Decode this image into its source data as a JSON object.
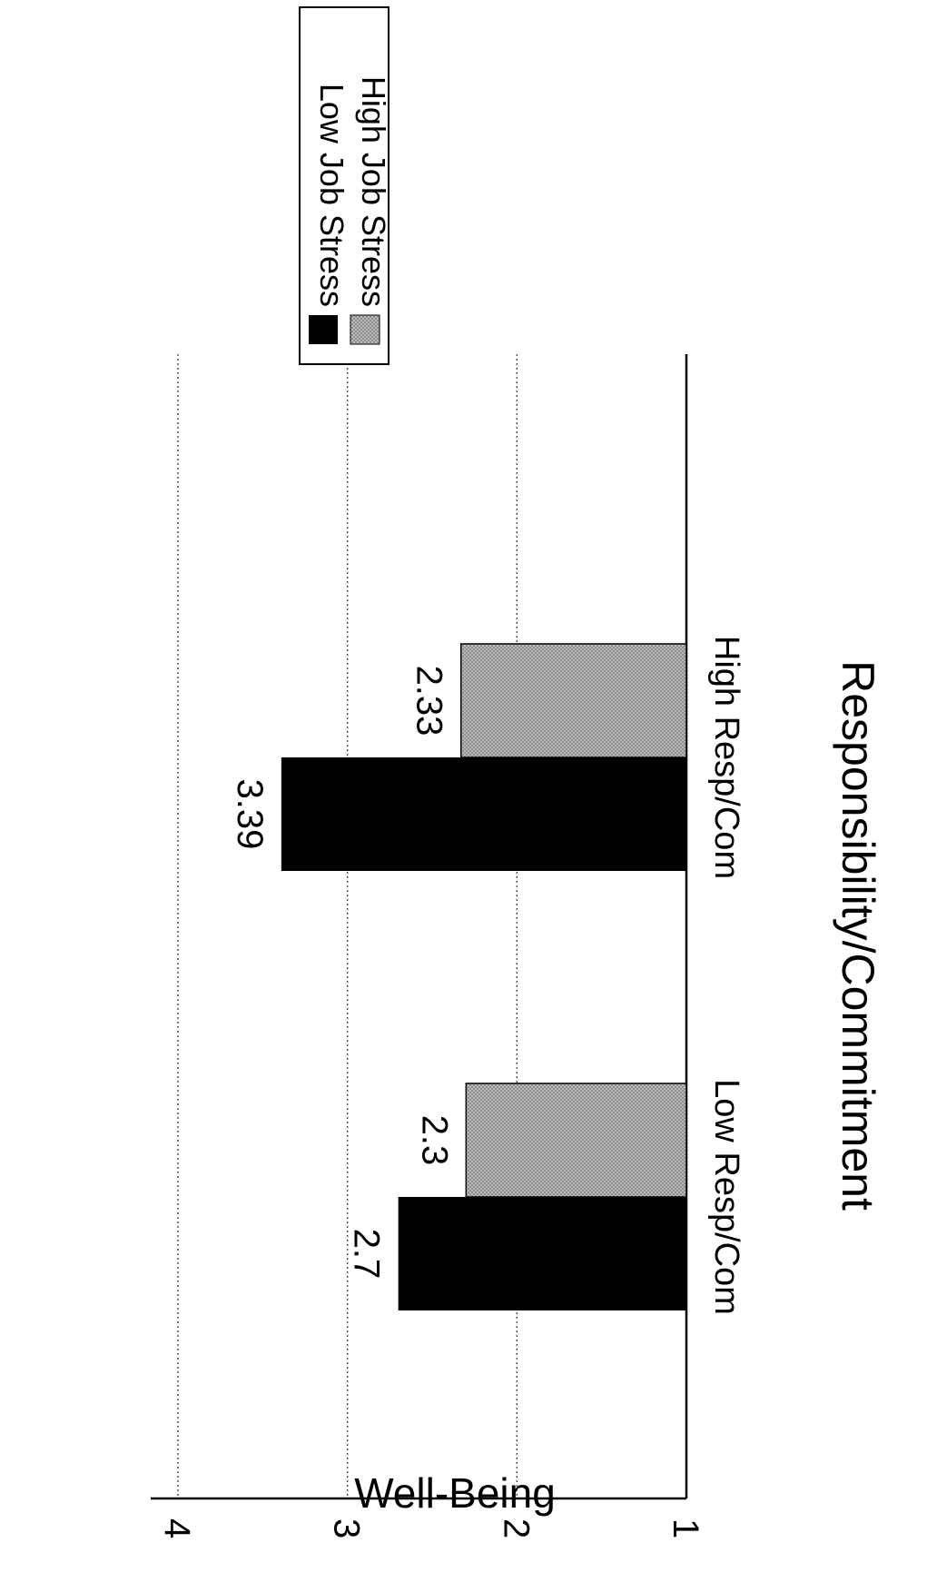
{
  "chart_data": {
    "type": "bar",
    "orientation": "vertical",
    "categories": [
      "Low Resp/Com",
      "High Resp/Com"
    ],
    "series": [
      {
        "name": "Low Job Stress",
        "values": [
          2.7,
          3.39
        ],
        "color": "#000000"
      },
      {
        "name": "High Job Stress",
        "values": [
          2.3,
          2.33
        ],
        "color": "#a9a9a9",
        "pattern": "stipple"
      }
    ],
    "data_labels": [
      [
        "2.7",
        "3.39"
      ],
      [
        "2.3",
        "2.33"
      ]
    ],
    "xlabel": "Responsibility/Commitment",
    "ylabel": "Well-Being",
    "yticks": [
      "1",
      "2",
      "3",
      "4"
    ],
    "ylim": [
      1,
      4
    ],
    "grid": "horizontal dotted",
    "legend_position": "top-right"
  }
}
